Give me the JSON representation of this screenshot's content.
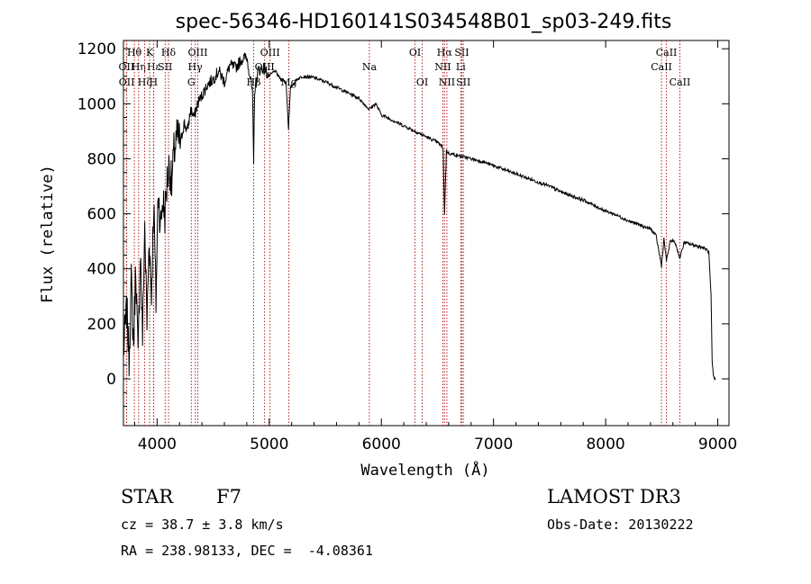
{
  "chart_data": {
    "type": "line",
    "title": "spec-56346-HD160141S034548B01_sp03-249.fits",
    "xlabel": "Wavelength (Å)",
    "ylabel": "Flux (relative)",
    "xlim": [
      3700,
      9100
    ],
    "ylim": [
      -170,
      1230
    ],
    "xticks": [
      4000,
      5000,
      6000,
      7000,
      8000,
      9000
    ],
    "yticks": [
      0,
      200,
      400,
      600,
      800,
      1000,
      1200
    ],
    "line_color": "#000000",
    "marker_color": "#b02020",
    "series": [
      {
        "name": "flux",
        "x": [
          3700,
          3730,
          3750,
          3770,
          3790,
          3810,
          3830,
          3850,
          3870,
          3890,
          3910,
          3930,
          3950,
          3970,
          3990,
          4010,
          4030,
          4050,
          4070,
          4090,
          4110,
          4130,
          4150,
          4180,
          4210,
          4240,
          4270,
          4300,
          4330,
          4360,
          4400,
          4450,
          4500,
          4550,
          4600,
          4650,
          4700,
          4750,
          4800,
          4830,
          4850,
          4861,
          4870,
          4900,
          4950,
          5000,
          5050,
          5100,
          5150,
          5172,
          5190,
          5250,
          5300,
          5400,
          5500,
          5600,
          5700,
          5800,
          5890,
          5950,
          6000,
          6100,
          6200,
          6300,
          6400,
          6500,
          6550,
          6563,
          6580,
          6600,
          6700,
          6800,
          6900,
          7000,
          7100,
          7200,
          7300,
          7400,
          7500,
          7600,
          7700,
          7800,
          7900,
          8000,
          8100,
          8200,
          8300,
          8400,
          8450,
          8498,
          8520,
          8542,
          8580,
          8620,
          8662,
          8700,
          8750,
          8800,
          8850,
          8900,
          8920,
          8940,
          8950,
          8960,
          8970,
          8980
        ],
        "y": [
          100,
          250,
          80,
          350,
          120,
          420,
          60,
          480,
          150,
          560,
          200,
          520,
          300,
          650,
          280,
          700,
          550,
          650,
          600,
          720,
          780,
          700,
          820,
          880,
          860,
          930,
          900,
          980,
          950,
          1000,
          1030,
          1070,
          1090,
          1120,
          1080,
          1140,
          1130,
          1160,
          1170,
          1100,
          1040,
          780,
          1050,
          1120,
          1130,
          1100,
          1120,
          1090,
          1080,
          910,
          1060,
          1090,
          1100,
          1095,
          1080,
          1060,
          1040,
          1020,
          980,
          1000,
          960,
          940,
          920,
          900,
          880,
          860,
          840,
          600,
          830,
          820,
          810,
          800,
          790,
          775,
          760,
          745,
          730,
          715,
          700,
          680,
          665,
          650,
          630,
          610,
          595,
          575,
          560,
          545,
          520,
          410,
          510,
          430,
          505,
          495,
          440,
          495,
          490,
          485,
          480,
          470,
          460,
          300,
          60,
          10,
          0,
          0
        ]
      }
    ],
    "line_markers": [
      {
        "label": "Hθ",
        "x": 3797,
        "row": 1
      },
      {
        "label": "OII",
        "x": 3727,
        "row": 2
      },
      {
        "label": "OII",
        "x": 3729,
        "row": 3
      },
      {
        "label": "Hη",
        "x": 3835,
        "row": 2
      },
      {
        "label": "Hζ",
        "x": 3889,
        "row": 3
      },
      {
        "label": "Hε",
        "x": 3970,
        "row": 2
      },
      {
        "label": "K",
        "x": 3934,
        "row": 1
      },
      {
        "label": "H",
        "x": 3968,
        "row": 3
      },
      {
        "label": "Hδ",
        "x": 4102,
        "row": 1
      },
      {
        "label": "SII",
        "x": 4072,
        "row": 2
      },
      {
        "label": "OIII",
        "x": 4363,
        "row": 1
      },
      {
        "label": "Hγ",
        "x": 4340,
        "row": 2
      },
      {
        "label": "G",
        "x": 4305,
        "row": 3
      },
      {
        "label": "OIII",
        "x": 5007,
        "row": 1
      },
      {
        "label": "OIII",
        "x": 4959,
        "row": 2
      },
      {
        "label": "Hβ",
        "x": 4861,
        "row": 3
      },
      {
        "label": "Mg",
        "x": 5175,
        "row": 3
      },
      {
        "label": "Na",
        "x": 5893,
        "row": 2
      },
      {
        "label": "OI",
        "x": 6300,
        "row": 1
      },
      {
        "label": "OI",
        "x": 6364,
        "row": 3
      },
      {
        "label": "Hα",
        "x": 6563,
        "row": 1
      },
      {
        "label": "NII",
        "x": 6548,
        "row": 2
      },
      {
        "label": "NII",
        "x": 6584,
        "row": 3
      },
      {
        "label": "SII",
        "x": 6717,
        "row": 1
      },
      {
        "label": "Li",
        "x": 6708,
        "row": 2
      },
      {
        "label": "SII",
        "x": 6731,
        "row": 3
      },
      {
        "label": "CaII",
        "x": 8542,
        "row": 1
      },
      {
        "label": "CaII",
        "x": 8498,
        "row": 2
      },
      {
        "label": "CaII",
        "x": 8662,
        "row": 3
      }
    ]
  },
  "info": {
    "object_type": "STAR",
    "subclass": "F7",
    "survey": "LAMOST DR3",
    "redshift_line": "cz = 38.7 ± 3.8 km/s",
    "obs_date_line": "Obs-Date: 20130222",
    "coords_line": "RA = 238.98133, DEC =  -4.08361"
  }
}
